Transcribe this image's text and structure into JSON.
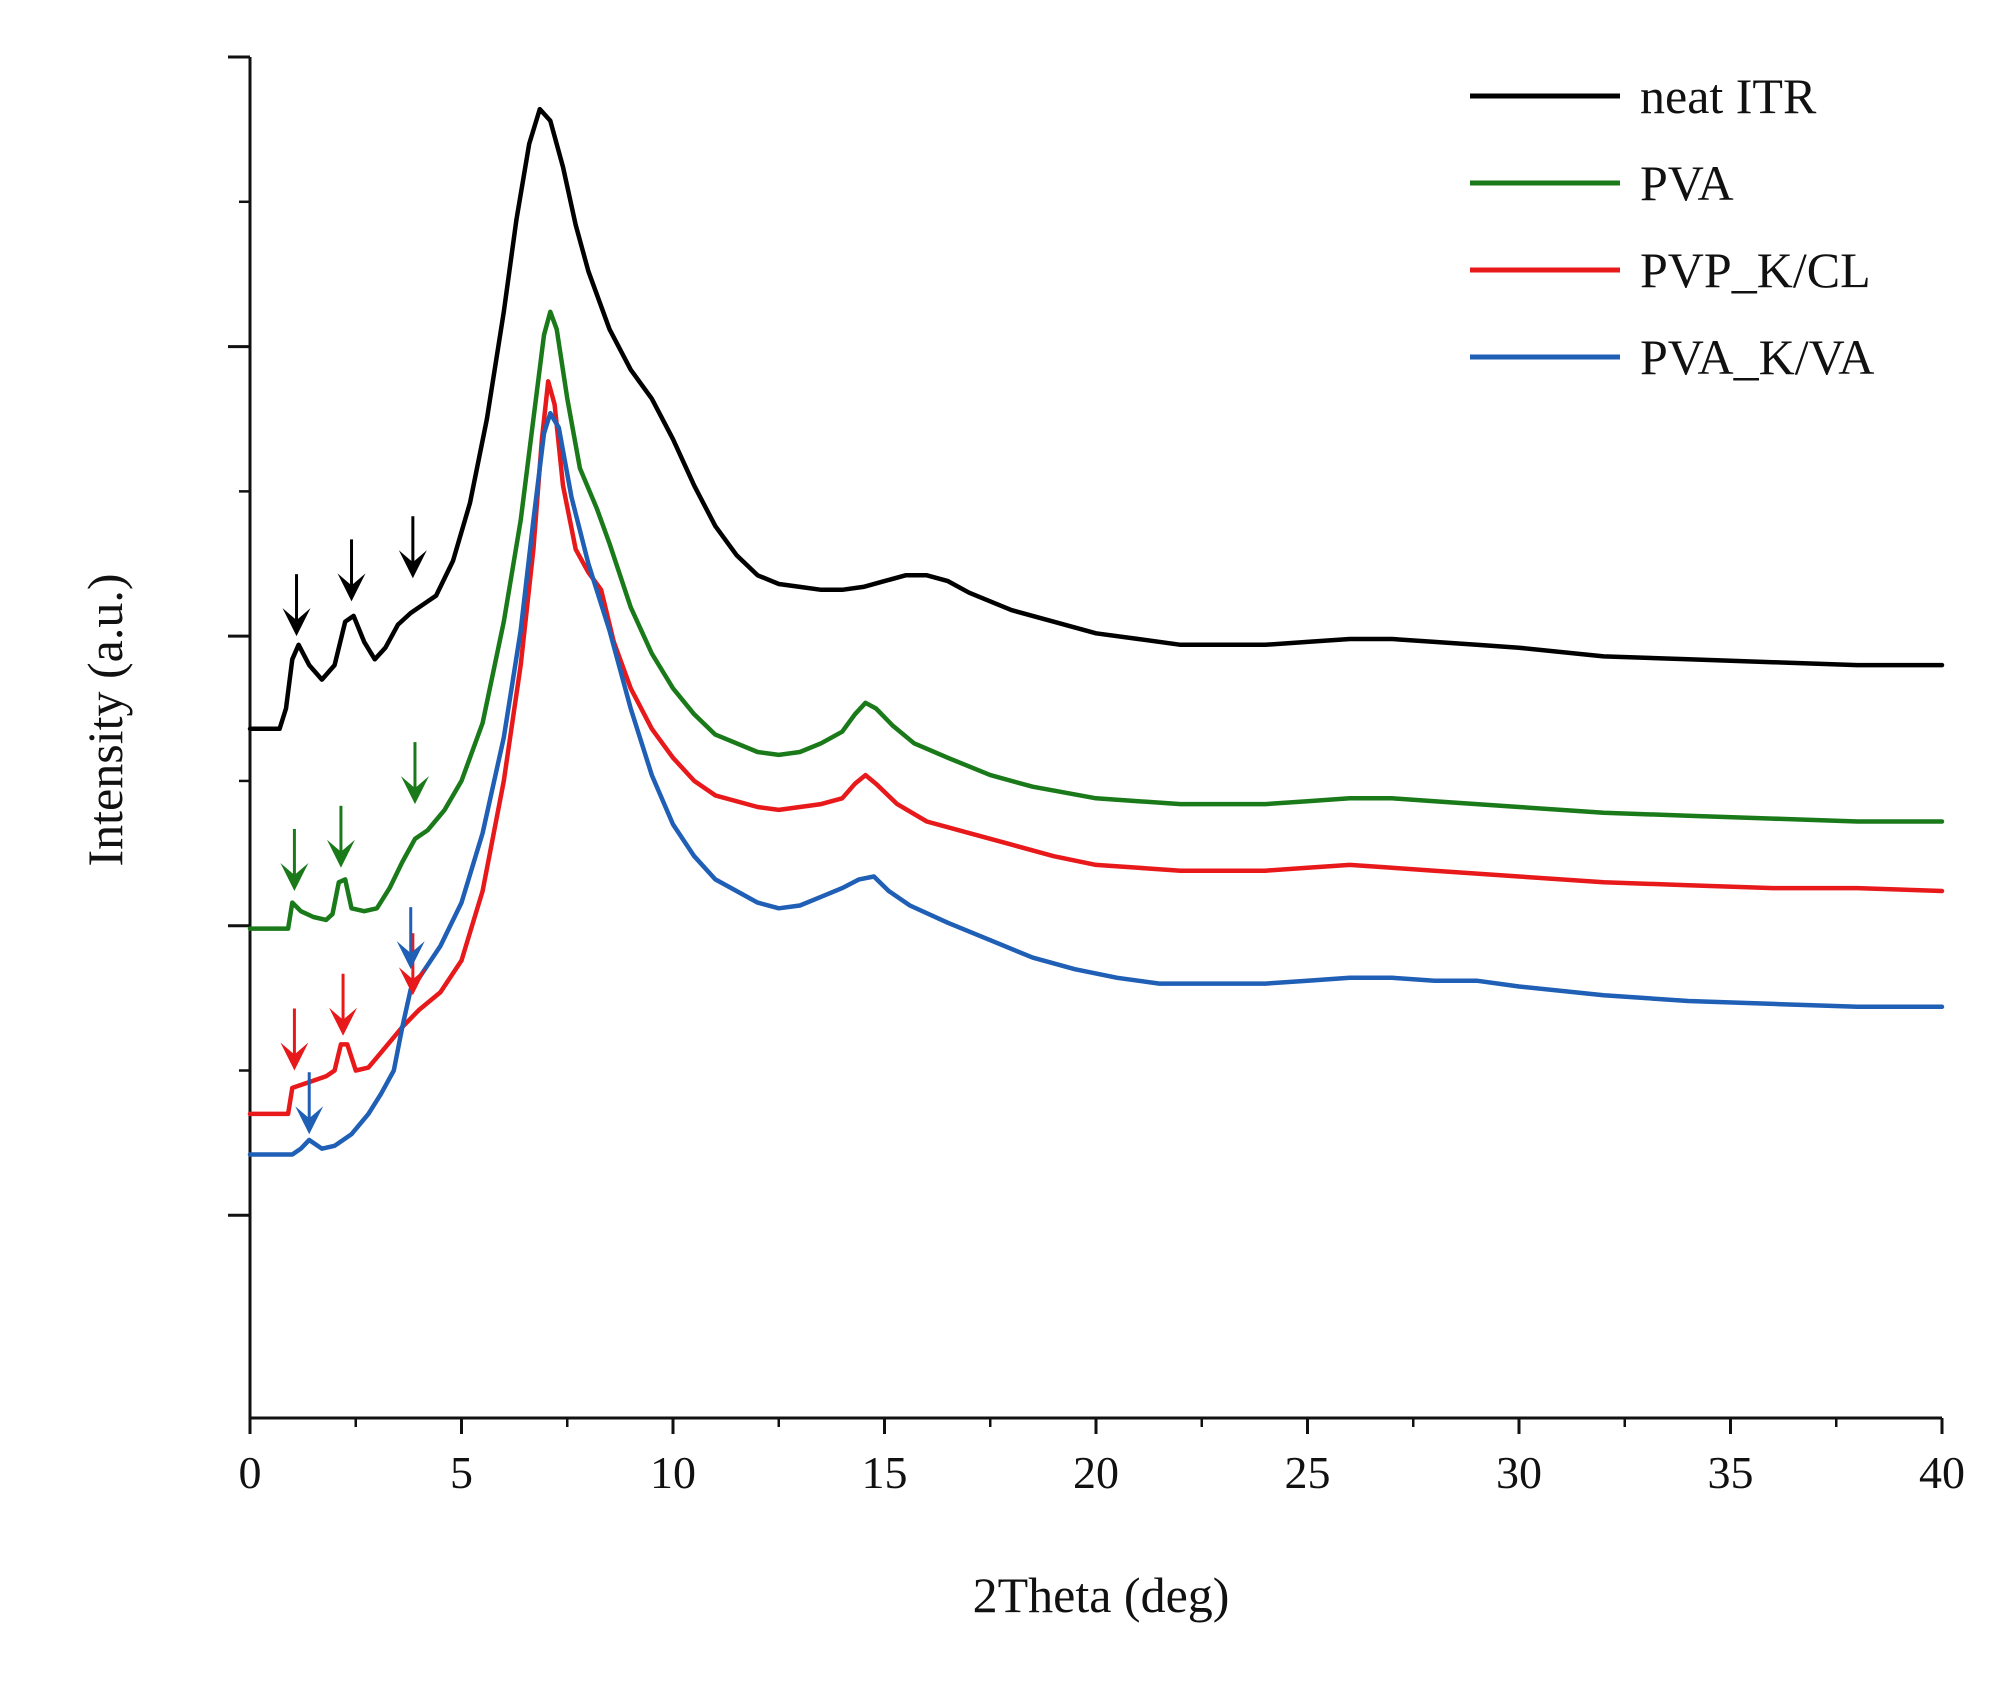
{
  "chart_data": {
    "type": "line",
    "title": "",
    "xlabel": "2Theta (deg)",
    "ylabel": "Intensity (a.u.)",
    "xlim": [
      0,
      40
    ],
    "ylim": [
      0,
      4.7
    ],
    "x_ticks": [
      0,
      5,
      10,
      15,
      20,
      25,
      30,
      35,
      40
    ],
    "x_tick_labels": [
      "0",
      "5",
      "10",
      "15",
      "20",
      "25",
      "30",
      "35",
      "40"
    ],
    "y_tick_values": [
      0.7,
      1.7,
      2.7,
      3.7,
      4.7
    ],
    "y_tick_labels_shown": false,
    "grid": false,
    "legend_position": "top-right",
    "series": [
      {
        "name": "neat ITR",
        "color": "#000000",
        "points": [
          [
            0,
            2.38
          ],
          [
            0.7,
            2.38
          ],
          [
            0.85,
            2.45
          ],
          [
            1.0,
            2.62
          ],
          [
            1.15,
            2.67
          ],
          [
            1.4,
            2.6
          ],
          [
            1.7,
            2.55
          ],
          [
            2.0,
            2.6
          ],
          [
            2.25,
            2.75
          ],
          [
            2.45,
            2.77
          ],
          [
            2.7,
            2.68
          ],
          [
            2.95,
            2.62
          ],
          [
            3.2,
            2.66
          ],
          [
            3.5,
            2.74
          ],
          [
            3.8,
            2.78
          ],
          [
            4.1,
            2.81
          ],
          [
            4.4,
            2.84
          ],
          [
            4.8,
            2.96
          ],
          [
            5.2,
            3.16
          ],
          [
            5.6,
            3.45
          ],
          [
            6.0,
            3.82
          ],
          [
            6.3,
            4.14
          ],
          [
            6.6,
            4.4
          ],
          [
            6.85,
            4.52
          ],
          [
            7.1,
            4.48
          ],
          [
            7.4,
            4.32
          ],
          [
            7.7,
            4.12
          ],
          [
            8.0,
            3.96
          ],
          [
            8.5,
            3.76
          ],
          [
            9.0,
            3.62
          ],
          [
            9.5,
            3.52
          ],
          [
            10.0,
            3.38
          ],
          [
            10.5,
            3.22
          ],
          [
            11.0,
            3.08
          ],
          [
            11.5,
            2.98
          ],
          [
            12.0,
            2.91
          ],
          [
            12.5,
            2.88
          ],
          [
            13.0,
            2.87
          ],
          [
            13.5,
            2.86
          ],
          [
            14.0,
            2.86
          ],
          [
            14.5,
            2.87
          ],
          [
            15.0,
            2.89
          ],
          [
            15.5,
            2.91
          ],
          [
            16.0,
            2.91
          ],
          [
            16.5,
            2.89
          ],
          [
            17.0,
            2.85
          ],
          [
            18.0,
            2.79
          ],
          [
            19.0,
            2.75
          ],
          [
            20.0,
            2.71
          ],
          [
            21.0,
            2.69
          ],
          [
            22.0,
            2.67
          ],
          [
            23.0,
            2.67
          ],
          [
            24.0,
            2.67
          ],
          [
            25.0,
            2.68
          ],
          [
            26.0,
            2.69
          ],
          [
            27.0,
            2.69
          ],
          [
            28.0,
            2.68
          ],
          [
            29.0,
            2.67
          ],
          [
            30.0,
            2.66
          ],
          [
            32.0,
            2.63
          ],
          [
            34.0,
            2.62
          ],
          [
            36.0,
            2.61
          ],
          [
            38.0,
            2.6
          ],
          [
            40.0,
            2.6
          ]
        ]
      },
      {
        "name": "PVA",
        "color": "#1a7a1a",
        "points": [
          [
            0,
            1.69
          ],
          [
            0.9,
            1.69
          ],
          [
            1.0,
            1.78
          ],
          [
            1.2,
            1.75
          ],
          [
            1.5,
            1.73
          ],
          [
            1.8,
            1.72
          ],
          [
            1.95,
            1.74
          ],
          [
            2.1,
            1.85
          ],
          [
            2.25,
            1.86
          ],
          [
            2.4,
            1.76
          ],
          [
            2.7,
            1.75
          ],
          [
            3.0,
            1.76
          ],
          [
            3.3,
            1.83
          ],
          [
            3.6,
            1.92
          ],
          [
            3.9,
            2.0
          ],
          [
            4.2,
            2.03
          ],
          [
            4.6,
            2.1
          ],
          [
            5.0,
            2.2
          ],
          [
            5.5,
            2.4
          ],
          [
            6.0,
            2.75
          ],
          [
            6.4,
            3.1
          ],
          [
            6.7,
            3.45
          ],
          [
            6.95,
            3.74
          ],
          [
            7.1,
            3.82
          ],
          [
            7.25,
            3.76
          ],
          [
            7.5,
            3.52
          ],
          [
            7.8,
            3.28
          ],
          [
            8.2,
            3.14
          ],
          [
            8.5,
            3.02
          ],
          [
            9.0,
            2.8
          ],
          [
            9.5,
            2.64
          ],
          [
            10.0,
            2.52
          ],
          [
            10.5,
            2.43
          ],
          [
            11.0,
            2.36
          ],
          [
            12.0,
            2.3
          ],
          [
            12.5,
            2.29
          ],
          [
            13.0,
            2.3
          ],
          [
            13.5,
            2.33
          ],
          [
            14.0,
            2.37
          ],
          [
            14.3,
            2.43
          ],
          [
            14.55,
            2.47
          ],
          [
            14.8,
            2.45
          ],
          [
            15.2,
            2.39
          ],
          [
            15.7,
            2.33
          ],
          [
            16.5,
            2.28
          ],
          [
            17.5,
            2.22
          ],
          [
            18.5,
            2.18
          ],
          [
            20.0,
            2.14
          ],
          [
            21.0,
            2.13
          ],
          [
            22.0,
            2.12
          ],
          [
            23.0,
            2.12
          ],
          [
            24.0,
            2.12
          ],
          [
            25.0,
            2.13
          ],
          [
            26.0,
            2.14
          ],
          [
            27.0,
            2.14
          ],
          [
            28.0,
            2.13
          ],
          [
            29.0,
            2.12
          ],
          [
            30.0,
            2.11
          ],
          [
            32.0,
            2.09
          ],
          [
            34.0,
            2.08
          ],
          [
            36.0,
            2.07
          ],
          [
            38.0,
            2.06
          ],
          [
            40.0,
            2.06
          ]
        ]
      },
      {
        "name": "PVP_K/CL",
        "color": "#e8191b",
        "points": [
          [
            0,
            1.05
          ],
          [
            0.9,
            1.05
          ],
          [
            1.0,
            1.14
          ],
          [
            1.4,
            1.16
          ],
          [
            1.8,
            1.18
          ],
          [
            2.0,
            1.2
          ],
          [
            2.15,
            1.29
          ],
          [
            2.3,
            1.29
          ],
          [
            2.5,
            1.2
          ],
          [
            2.8,
            1.21
          ],
          [
            3.2,
            1.28
          ],
          [
            3.6,
            1.35
          ],
          [
            4.0,
            1.41
          ],
          [
            4.5,
            1.47
          ],
          [
            5.0,
            1.58
          ],
          [
            5.5,
            1.82
          ],
          [
            6.0,
            2.2
          ],
          [
            6.4,
            2.6
          ],
          [
            6.7,
            3.0
          ],
          [
            6.9,
            3.38
          ],
          [
            7.05,
            3.58
          ],
          [
            7.2,
            3.5
          ],
          [
            7.4,
            3.22
          ],
          [
            7.7,
            3.0
          ],
          [
            8.0,
            2.92
          ],
          [
            8.3,
            2.86
          ],
          [
            8.6,
            2.68
          ],
          [
            9.0,
            2.52
          ],
          [
            9.5,
            2.38
          ],
          [
            10.0,
            2.28
          ],
          [
            10.5,
            2.2
          ],
          [
            11.0,
            2.15
          ],
          [
            12.0,
            2.11
          ],
          [
            12.5,
            2.1
          ],
          [
            13.0,
            2.11
          ],
          [
            13.5,
            2.12
          ],
          [
            14.0,
            2.14
          ],
          [
            14.3,
            2.19
          ],
          [
            14.55,
            2.22
          ],
          [
            14.8,
            2.19
          ],
          [
            15.3,
            2.12
          ],
          [
            16.0,
            2.06
          ],
          [
            17.0,
            2.02
          ],
          [
            18.0,
            1.98
          ],
          [
            19.0,
            1.94
          ],
          [
            20.0,
            1.91
          ],
          [
            21.0,
            1.9
          ],
          [
            22.0,
            1.89
          ],
          [
            23.0,
            1.89
          ],
          [
            24.0,
            1.89
          ],
          [
            25.0,
            1.9
          ],
          [
            26.0,
            1.91
          ],
          [
            27.0,
            1.9
          ],
          [
            28.0,
            1.89
          ],
          [
            29.0,
            1.88
          ],
          [
            30.0,
            1.87
          ],
          [
            32.0,
            1.85
          ],
          [
            34.0,
            1.84
          ],
          [
            36.0,
            1.83
          ],
          [
            38.0,
            1.83
          ],
          [
            40.0,
            1.82
          ]
        ]
      },
      {
        "name": "PVA_K/VA",
        "color": "#1f5fb5",
        "points": [
          [
            0,
            0.91
          ],
          [
            1.0,
            0.91
          ],
          [
            1.2,
            0.93
          ],
          [
            1.4,
            0.96
          ],
          [
            1.7,
            0.93
          ],
          [
            2.0,
            0.94
          ],
          [
            2.4,
            0.98
          ],
          [
            2.8,
            1.05
          ],
          [
            3.1,
            1.12
          ],
          [
            3.4,
            1.2
          ],
          [
            3.6,
            1.35
          ],
          [
            3.8,
            1.48
          ],
          [
            4.0,
            1.52
          ],
          [
            4.5,
            1.63
          ],
          [
            5.0,
            1.78
          ],
          [
            5.5,
            2.02
          ],
          [
            6.0,
            2.35
          ],
          [
            6.4,
            2.72
          ],
          [
            6.7,
            3.1
          ],
          [
            6.95,
            3.4
          ],
          [
            7.1,
            3.47
          ],
          [
            7.3,
            3.42
          ],
          [
            7.6,
            3.18
          ],
          [
            8.0,
            2.95
          ],
          [
            8.5,
            2.72
          ],
          [
            9.0,
            2.45
          ],
          [
            9.5,
            2.22
          ],
          [
            10.0,
            2.05
          ],
          [
            10.5,
            1.94
          ],
          [
            11.0,
            1.86
          ],
          [
            11.5,
            1.82
          ],
          [
            12.0,
            1.78
          ],
          [
            12.5,
            1.76
          ],
          [
            13.0,
            1.77
          ],
          [
            13.5,
            1.8
          ],
          [
            14.0,
            1.83
          ],
          [
            14.4,
            1.86
          ],
          [
            14.75,
            1.87
          ],
          [
            15.1,
            1.82
          ],
          [
            15.6,
            1.77
          ],
          [
            16.5,
            1.71
          ],
          [
            17.5,
            1.65
          ],
          [
            18.5,
            1.59
          ],
          [
            19.5,
            1.55
          ],
          [
            20.5,
            1.52
          ],
          [
            21.5,
            1.5
          ],
          [
            23.0,
            1.5
          ],
          [
            24.0,
            1.5
          ],
          [
            25.0,
            1.51
          ],
          [
            26.0,
            1.52
          ],
          [
            27.0,
            1.52
          ],
          [
            28.0,
            1.51
          ],
          [
            29.0,
            1.51
          ],
          [
            30.0,
            1.49
          ],
          [
            32.0,
            1.46
          ],
          [
            34.0,
            1.44
          ],
          [
            36.0,
            1.43
          ],
          [
            38.0,
            1.42
          ],
          [
            40.0,
            1.42
          ]
        ]
      }
    ],
    "annotations": [
      {
        "type": "arrow",
        "series": "neat ITR",
        "x": 1.1,
        "y": 2.7
      },
      {
        "type": "arrow",
        "series": "neat ITR",
        "x": 2.4,
        "y": 2.82
      },
      {
        "type": "arrow",
        "series": "neat ITR",
        "x": 3.85,
        "y": 2.9
      },
      {
        "type": "arrow",
        "series": "PVA",
        "x": 1.05,
        "y": 1.82
      },
      {
        "type": "arrow",
        "series": "PVA",
        "x": 2.15,
        "y": 1.9
      },
      {
        "type": "arrow",
        "series": "PVA",
        "x": 3.9,
        "y": 2.12
      },
      {
        "type": "arrow",
        "series": "PVP_K/CL",
        "x": 1.05,
        "y": 1.2
      },
      {
        "type": "arrow",
        "series": "PVP_K/CL",
        "x": 2.2,
        "y": 1.32
      },
      {
        "type": "arrow",
        "series": "PVP_K/CL",
        "x": 3.85,
        "y": 1.46
      },
      {
        "type": "arrow",
        "series": "PVA_K/VA",
        "x": 1.4,
        "y": 0.98
      },
      {
        "type": "arrow",
        "series": "PVA_K/VA",
        "x": 3.8,
        "y": 1.55
      }
    ]
  }
}
